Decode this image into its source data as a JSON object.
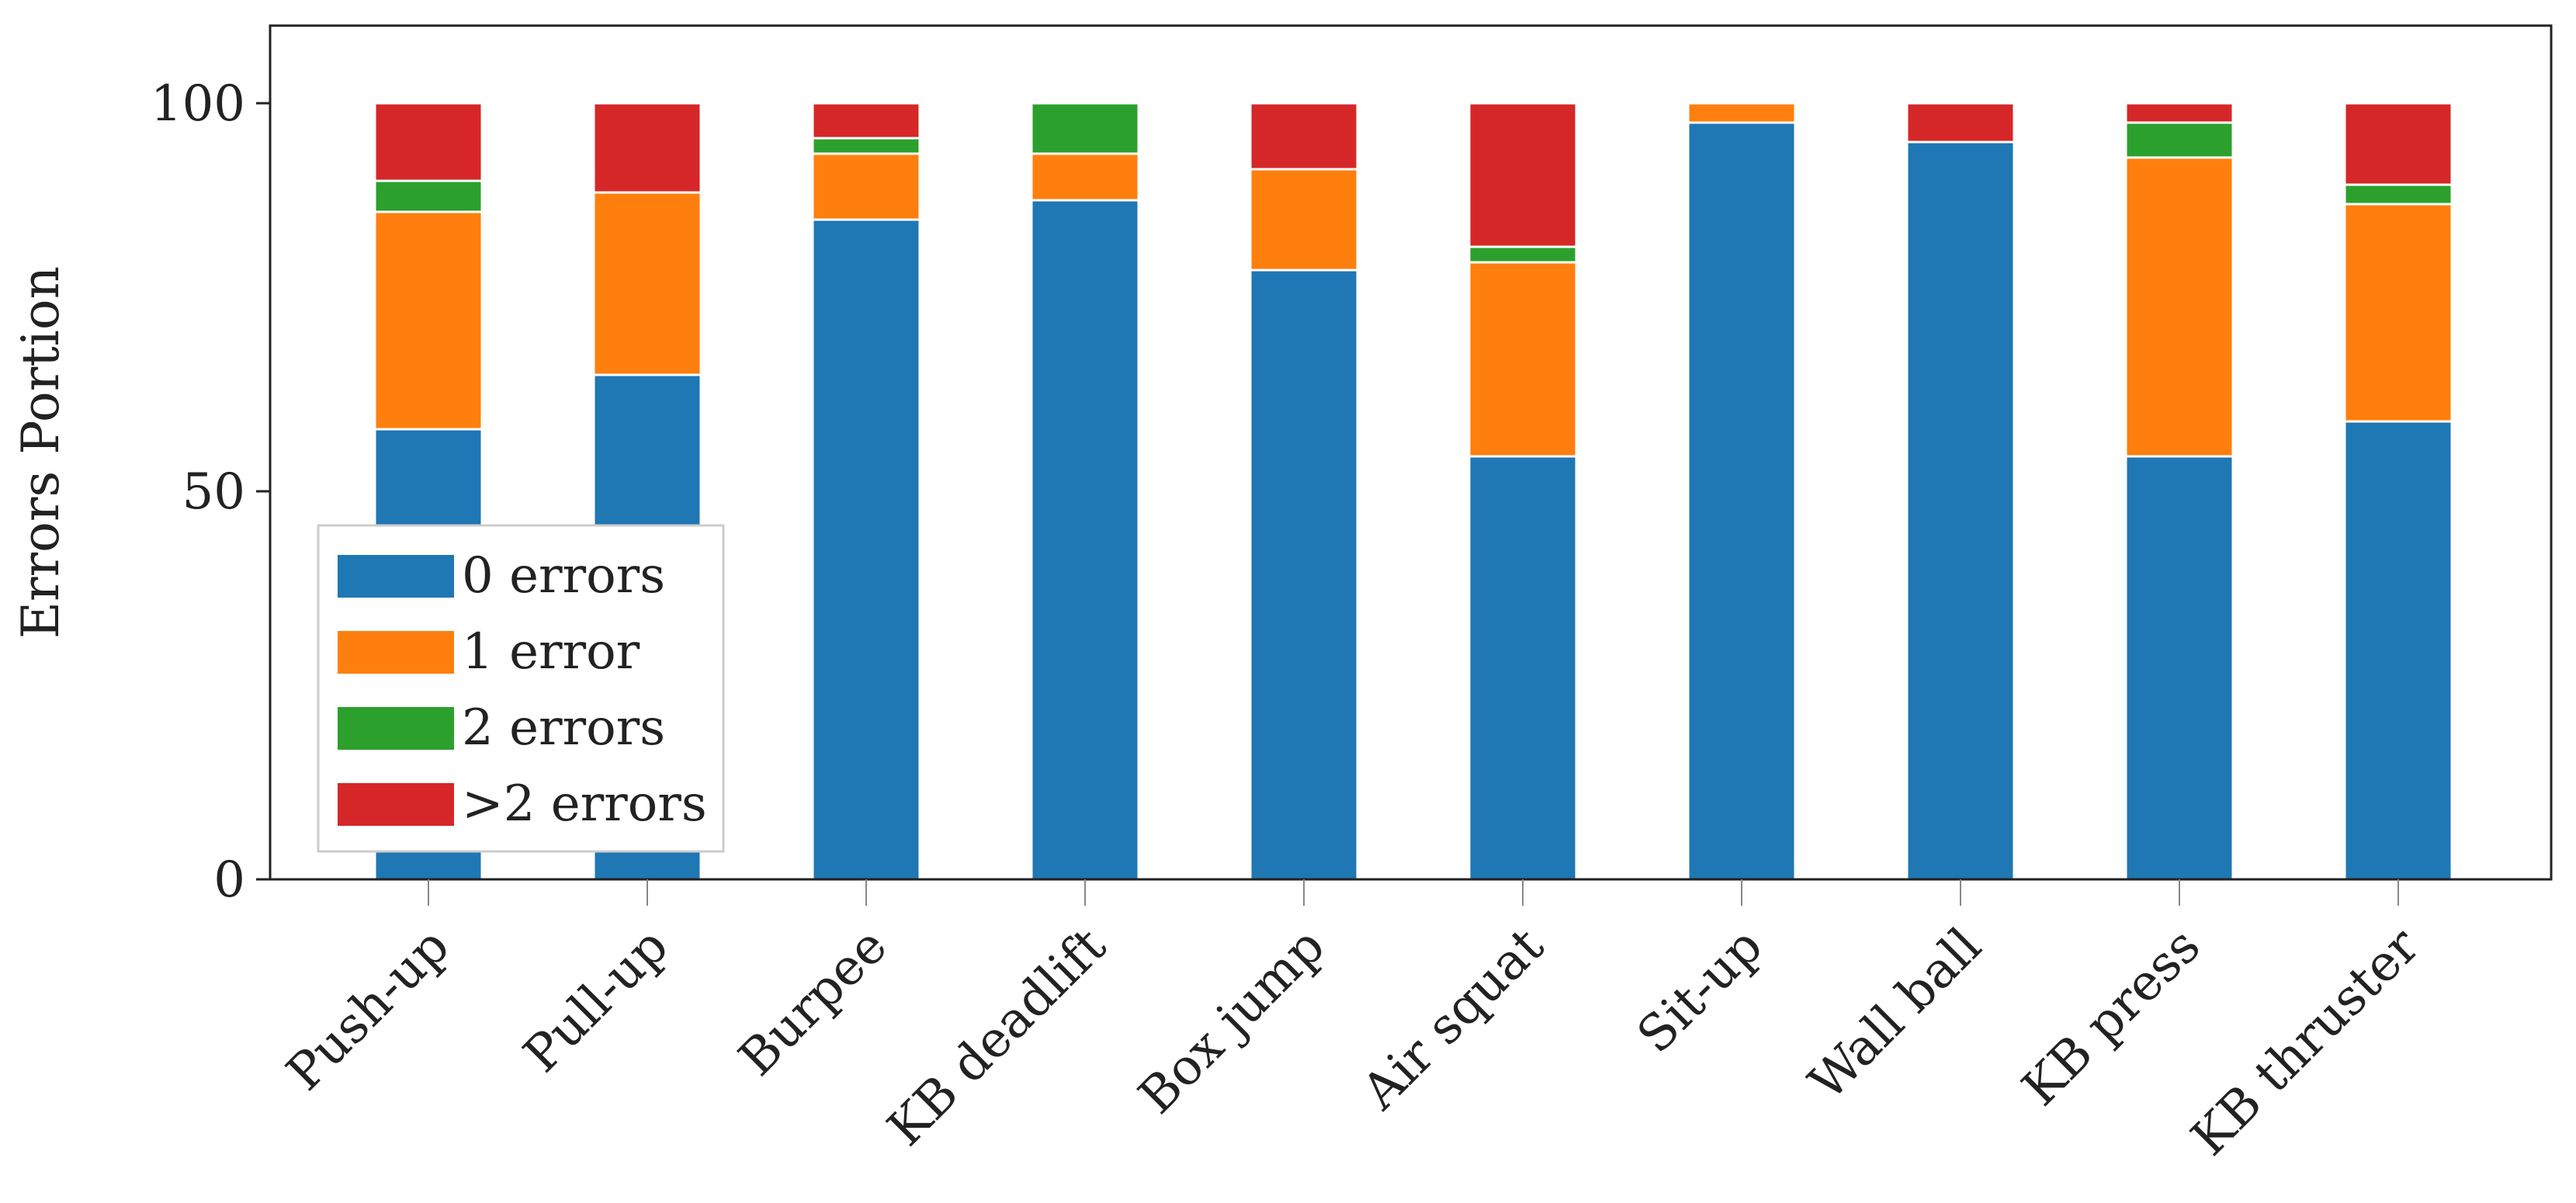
{
  "chart_data": {
    "type": "bar",
    "stacked": true,
    "categories": [
      "Push-up",
      "Pull-up",
      "Burpee",
      "KB deadlift",
      "Box jump",
      "Air squat",
      "Sit-up",
      "Wall ball",
      "KB press",
      "KB thruster"
    ],
    "series": [
      {
        "name": "0 errors",
        "color": "#1f77b4",
        "values": [
          58,
          65,
          85,
          87.5,
          78.5,
          54.5,
          97.5,
          95,
          54.5,
          59
        ]
      },
      {
        "name": "1 error",
        "color": "#ff7f0e",
        "values": [
          28,
          23.5,
          8.5,
          6,
          13,
          25,
          2.5,
          0,
          38.5,
          28
        ]
      },
      {
        "name": "2 errors",
        "color": "#2ca02c",
        "values": [
          4,
          0,
          2,
          6.5,
          0,
          2,
          0,
          0,
          4.5,
          2.5
        ]
      },
      {
        "name": ">2 errors",
        "color": "#d62728",
        "values": [
          10,
          11.5,
          4.5,
          0,
          8.5,
          18.5,
          0,
          5,
          2.5,
          10.5
        ]
      }
    ],
    "title": "",
    "xlabel": "",
    "ylabel": "Errors Portion",
    "ylim": [
      0,
      110
    ],
    "yticks": [
      0,
      50,
      100
    ],
    "grid": false,
    "legend_position": "lower-left"
  }
}
